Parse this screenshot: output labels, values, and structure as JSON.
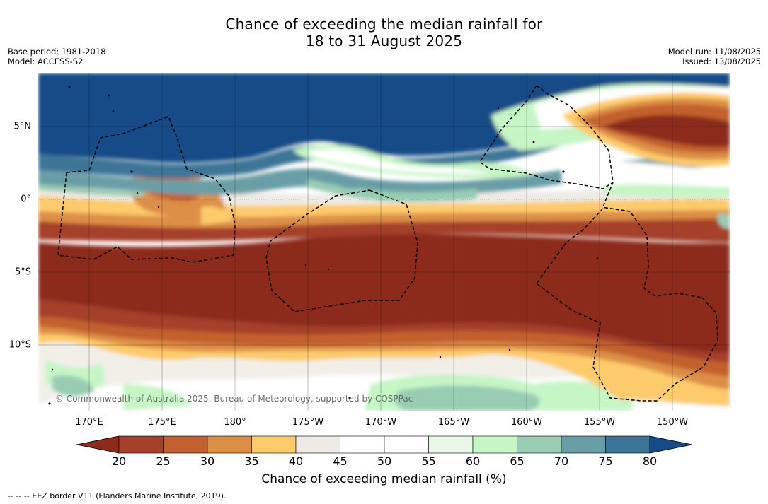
{
  "title": {
    "line1": "Chance of exceeding the median rainfall for",
    "line2": "18 to 31 August 2025"
  },
  "meta": {
    "base_period": "Base period: 1981-2018",
    "model": "Model: ACCESS-S2",
    "model_run": "Model run: 11/08/2025",
    "issued": "Issued: 13/08/2025"
  },
  "map": {
    "copyright": "© Commonwealth of Australia 2025, Bureau of Meteorology, supported by COSPPac",
    "lat_labels": [
      "5°N",
      "0°",
      "5°S",
      "10°S"
    ],
    "lon_labels": [
      "170°E",
      "175°E",
      "180°",
      "175°W",
      "170°W",
      "165°W",
      "160°W",
      "155°W",
      "150°W"
    ]
  },
  "colorbar": {
    "label": "Chance of exceeding median rainfall (%)",
    "ticks": [
      "20",
      "25",
      "30",
      "35",
      "40",
      "45",
      "50",
      "55",
      "60",
      "65",
      "70",
      "75",
      "80"
    ],
    "colors": {
      "below": "#8c2a1c",
      "bins": [
        "#a5402a",
        "#c2612f",
        "#dd8f46",
        "#fdcb6c",
        "#eeeae5",
        "#ffffff",
        "#ffffff",
        "#e9f6e8",
        "#c6f5c6",
        "#98ccb3",
        "#6a9ea6",
        "#3e7497"
      ],
      "above": "#134c87"
    }
  },
  "footnote": "--  --  -- EEZ border V11 (Flanders Marine Institute, 2019)."
}
